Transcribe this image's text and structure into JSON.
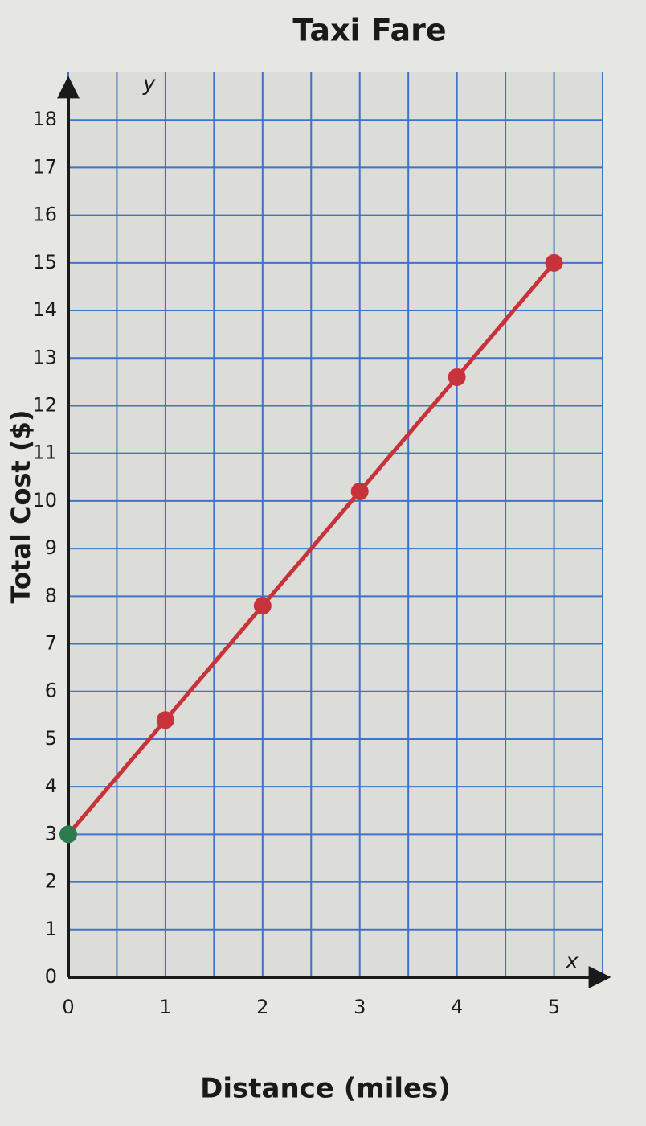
{
  "chart_data": {
    "type": "line",
    "title": "Taxi Fare",
    "x_label": "Distance (miles)",
    "y_label": "Total Cost ($)",
    "x_axis_var": "x",
    "y_axis_var": "y",
    "x": [
      0,
      1,
      2,
      3,
      4,
      5
    ],
    "series": [
      {
        "color": "#c8323a",
        "marker_colors": [
          "#2e7a50",
          "#c8323a",
          "#c8323a",
          "#c8323a",
          "#c8323a",
          "#c8323a"
        ],
        "values": [
          3,
          5.4,
          7.8,
          10.2,
          12.6,
          15
        ]
      }
    ],
    "xlim": [
      0,
      5.5
    ],
    "xticks": [
      0,
      1,
      2,
      3,
      4,
      5
    ],
    "xminorticks": [
      0.5,
      1.5,
      2.5,
      3.5,
      4.5,
      5.5
    ],
    "ylim": [
      0,
      19
    ],
    "yticks": [
      0,
      1,
      2,
      3,
      4,
      5,
      6,
      7,
      8,
      9,
      10,
      11,
      12,
      13,
      14,
      15,
      16,
      17,
      18
    ],
    "grid": true
  }
}
